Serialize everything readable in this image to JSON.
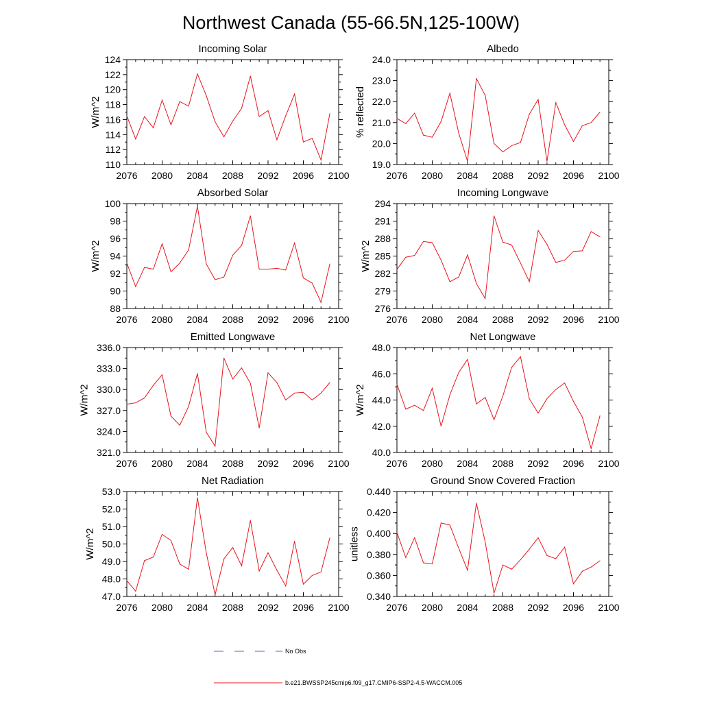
{
  "figure": {
    "title": "Northwest Canada (55-66.5N,125-100W)",
    "line_color": "#e8141c",
    "obs_color": "#5a63c8"
  },
  "legend": {
    "obs_label": "No Obs",
    "model_label": "b.e21.BWSSP245cmip6.f09_g17.CMIP6-SSP2-4.5-WACCM.005"
  },
  "chart_data": [
    {
      "type": "line",
      "title": "Incoming Solar",
      "ylabel": "W/m^2",
      "xlabel": "",
      "xlim": [
        2076,
        2100
      ],
      "ylim": [
        110,
        124
      ],
      "xticks": [
        2076,
        2080,
        2084,
        2088,
        2092,
        2096,
        2100
      ],
      "yticks": [
        110,
        112,
        114,
        116,
        118,
        120,
        122,
        124
      ],
      "yticklabels": [
        "110",
        "112",
        "114",
        "116",
        "118",
        "120",
        "122",
        "124"
      ],
      "x": [
        2076,
        2077,
        2078,
        2079,
        2080,
        2081,
        2082,
        2083,
        2084,
        2085,
        2086,
        2087,
        2088,
        2089,
        2090,
        2091,
        2092,
        2093,
        2094,
        2095,
        2096,
        2097,
        2098,
        2099
      ],
      "values": [
        116.5,
        113.4,
        116.4,
        114.9,
        118.6,
        115.3,
        118.4,
        117.8,
        122.1,
        119.2,
        115.7,
        113.7,
        115.8,
        117.5,
        121.8,
        116.4,
        117.2,
        113.3,
        116.5,
        119.4,
        113.0,
        113.5,
        110.6,
        116.8
      ]
    },
    {
      "type": "line",
      "title": "Albedo",
      "ylabel": "% reflected",
      "xlabel": "",
      "xlim": [
        2076,
        2100
      ],
      "ylim": [
        19,
        24
      ],
      "xticks": [
        2076,
        2080,
        2084,
        2088,
        2092,
        2096,
        2100
      ],
      "yticks": [
        19,
        20,
        21,
        22,
        23,
        24
      ],
      "yticklabels": [
        "19.0",
        "20.0",
        "21.0",
        "22.0",
        "23.0",
        "24.0"
      ],
      "x": [
        2076,
        2077,
        2078,
        2079,
        2080,
        2081,
        2082,
        2083,
        2084,
        2085,
        2086,
        2087,
        2088,
        2089,
        2090,
        2091,
        2092,
        2093,
        2094,
        2095,
        2096,
        2097,
        2098,
        2099
      ],
      "values": [
        21.2,
        20.95,
        21.45,
        20.4,
        20.3,
        21.05,
        22.4,
        20.5,
        19.15,
        23.1,
        22.3,
        20.0,
        19.6,
        19.9,
        20.05,
        21.4,
        22.1,
        19.15,
        21.95,
        20.9,
        20.1,
        20.85,
        21.0,
        21.5
      ]
    },
    {
      "type": "line",
      "title": "Absorbed Solar",
      "ylabel": "W/m^2",
      "xlabel": "",
      "xlim": [
        2076,
        2100
      ],
      "ylim": [
        88,
        100
      ],
      "xticks": [
        2076,
        2080,
        2084,
        2088,
        2092,
        2096,
        2100
      ],
      "yticks": [
        88,
        90,
        92,
        94,
        96,
        98,
        100
      ],
      "yticklabels": [
        "88",
        "90",
        "92",
        "94",
        "96",
        "98",
        "100"
      ],
      "x": [
        2076,
        2077,
        2078,
        2079,
        2080,
        2081,
        2082,
        2083,
        2084,
        2085,
        2086,
        2087,
        2088,
        2089,
        2090,
        2091,
        2092,
        2093,
        2094,
        2095,
        2096,
        2097,
        2098,
        2099
      ],
      "values": [
        93.2,
        90.5,
        92.7,
        92.5,
        95.4,
        92.2,
        93.2,
        94.7,
        99.7,
        93.1,
        91.3,
        91.6,
        94.1,
        95.2,
        98.6,
        92.5,
        92.5,
        92.6,
        92.4,
        95.5,
        91.5,
        90.9,
        88.7,
        93.1
      ]
    },
    {
      "type": "line",
      "title": "Incoming Longwave",
      "ylabel": "W/m^2",
      "xlabel": "",
      "xlim": [
        2076,
        2100
      ],
      "ylim": [
        276,
        294
      ],
      "xticks": [
        2076,
        2080,
        2084,
        2088,
        2092,
        2096,
        2100
      ],
      "yticks": [
        276,
        279,
        282,
        285,
        288,
        291,
        294
      ],
      "yticklabels": [
        "276",
        "279",
        "282",
        "285",
        "288",
        "291",
        "294"
      ],
      "x": [
        2076,
        2077,
        2078,
        2079,
        2080,
        2081,
        2082,
        2083,
        2084,
        2085,
        2086,
        2087,
        2088,
        2089,
        2090,
        2091,
        2092,
        2093,
        2094,
        2095,
        2096,
        2097,
        2098,
        2099
      ],
      "values": [
        282.7,
        284.8,
        285.1,
        287.5,
        287.3,
        284.3,
        280.6,
        281.4,
        285.2,
        280.3,
        277.7,
        291.9,
        287.4,
        286.9,
        283.8,
        280.6,
        289.4,
        287.0,
        283.9,
        284.3,
        285.8,
        285.9,
        289.2,
        288.3
      ]
    },
    {
      "type": "line",
      "title": "Emitted Longwave",
      "ylabel": "W/m^2",
      "xlabel": "",
      "xlim": [
        2076,
        2100
      ],
      "ylim": [
        321,
        336
      ],
      "xticks": [
        2076,
        2080,
        2084,
        2088,
        2092,
        2096,
        2100
      ],
      "yticks": [
        321,
        324,
        327,
        330,
        333,
        336
      ],
      "yticklabels": [
        "321.0",
        "324.0",
        "327.0",
        "330.0",
        "333.0",
        "336.0"
      ],
      "x": [
        2076,
        2077,
        2078,
        2079,
        2080,
        2081,
        2082,
        2083,
        2084,
        2085,
        2086,
        2087,
        2088,
        2089,
        2090,
        2091,
        2092,
        2093,
        2094,
        2095,
        2096,
        2097,
        2098,
        2099
      ],
      "values": [
        327.9,
        328.1,
        328.8,
        330.6,
        332.1,
        326.2,
        324.9,
        327.6,
        332.3,
        323.9,
        321.9,
        334.5,
        331.5,
        333.1,
        330.9,
        324.5,
        332.4,
        331.0,
        328.5,
        329.5,
        329.6,
        328.5,
        329.5,
        331.0
      ]
    },
    {
      "type": "line",
      "title": "Net Longwave",
      "ylabel": "W/m^2",
      "xlabel": "",
      "xlim": [
        2076,
        2100
      ],
      "ylim": [
        40,
        48
      ],
      "xticks": [
        2076,
        2080,
        2084,
        2088,
        2092,
        2096,
        2100
      ],
      "yticks": [
        40,
        42,
        44,
        46,
        48
      ],
      "yticklabels": [
        "40.0",
        "42.0",
        "44.0",
        "46.0",
        "48.0"
      ],
      "x": [
        2076,
        2077,
        2078,
        2079,
        2080,
        2081,
        2082,
        2083,
        2084,
        2085,
        2086,
        2087,
        2088,
        2089,
        2090,
        2091,
        2092,
        2093,
        2094,
        2095,
        2096,
        2097,
        2098,
        2099
      ],
      "values": [
        45.2,
        43.3,
        43.6,
        43.2,
        44.9,
        42.0,
        44.4,
        46.1,
        47.1,
        43.7,
        44.2,
        42.5,
        44.3,
        46.5,
        47.3,
        44.1,
        43.0,
        44.1,
        44.8,
        45.3,
        43.9,
        42.7,
        40.3,
        42.8
      ]
    },
    {
      "type": "line",
      "title": "Net Radiation",
      "ylabel": "W/m^2",
      "xlabel": "",
      "xlim": [
        2076,
        2100
      ],
      "ylim": [
        47,
        53
      ],
      "xticks": [
        2076,
        2080,
        2084,
        2088,
        2092,
        2096,
        2100
      ],
      "yticks": [
        47,
        48,
        49,
        50,
        51,
        52,
        53
      ],
      "yticklabels": [
        "47.0",
        "48.0",
        "49.0",
        "50.0",
        "51.0",
        "52.0",
        "53.0"
      ],
      "x": [
        2076,
        2077,
        2078,
        2079,
        2080,
        2081,
        2082,
        2083,
        2084,
        2085,
        2086,
        2087,
        2088,
        2089,
        2090,
        2091,
        2092,
        2093,
        2094,
        2095,
        2096,
        2097,
        2098,
        2099
      ],
      "values": [
        47.9,
        47.3,
        49.05,
        49.25,
        50.55,
        50.2,
        48.85,
        48.55,
        52.65,
        49.5,
        47.1,
        49.15,
        49.8,
        48.75,
        51.35,
        48.45,
        49.5,
        48.5,
        47.6,
        50.15,
        47.7,
        48.2,
        48.4,
        50.35
      ]
    },
    {
      "type": "line",
      "title": "Ground Snow Covered Fraction",
      "ylabel": "unitless",
      "xlabel": "",
      "xlim": [
        2076,
        2100
      ],
      "ylim": [
        0.34,
        0.44
      ],
      "xticks": [
        2076,
        2080,
        2084,
        2088,
        2092,
        2096,
        2100
      ],
      "yticks": [
        0.34,
        0.36,
        0.38,
        0.4,
        0.42,
        0.44
      ],
      "yticklabels": [
        "0.340",
        "0.360",
        "0.380",
        "0.400",
        "0.420",
        "0.440"
      ],
      "x": [
        2076,
        2077,
        2078,
        2079,
        2080,
        2081,
        2082,
        2083,
        2084,
        2085,
        2086,
        2087,
        2088,
        2089,
        2090,
        2091,
        2092,
        2093,
        2094,
        2095,
        2096,
        2097,
        2098,
        2099
      ],
      "values": [
        0.401,
        0.377,
        0.396,
        0.372,
        0.371,
        0.41,
        0.408,
        0.386,
        0.365,
        0.429,
        0.392,
        0.343,
        0.37,
        0.366,
        0.375,
        0.385,
        0.396,
        0.379,
        0.376,
        0.387,
        0.352,
        0.364,
        0.368,
        0.374
      ]
    }
  ]
}
